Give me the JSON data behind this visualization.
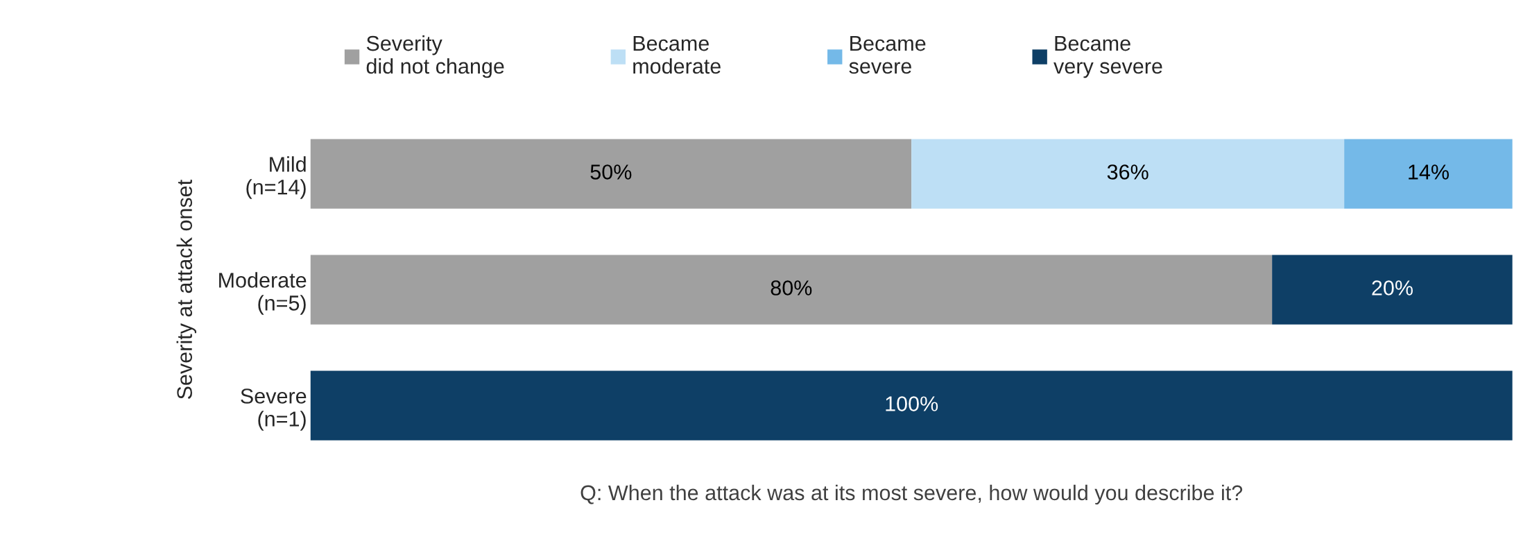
{
  "chart_data": {
    "type": "bar",
    "orientation": "horizontal",
    "stacked": true,
    "categories": [
      "Mild\n(n=14)",
      "Moderate\n(n=5)",
      "Severe\n(n=1)"
    ],
    "series": [
      {
        "name": "Severity\ndid not change",
        "color": "#a0a0a0",
        "values": [
          50,
          80,
          null
        ],
        "value_labels": [
          "50%",
          "80%",
          null
        ]
      },
      {
        "name": "Became\nmoderate",
        "color": "#bddff5",
        "values": [
          36,
          null,
          null
        ],
        "value_labels": [
          "36%",
          null,
          null
        ]
      },
      {
        "name": "Became\nsevere",
        "color": "#74b9e8",
        "values": [
          14,
          null,
          null
        ],
        "value_labels": [
          "14%",
          null,
          null
        ]
      },
      {
        "name": "Became\nvery severe",
        "color": "#0e3f66",
        "values": [
          null,
          20,
          100
        ],
        "value_labels": [
          null,
          "20%",
          "100%"
        ]
      }
    ],
    "xlim": [
      0,
      100
    ],
    "tick_labels": "y",
    "grid": false,
    "legend": "top",
    "ylabel": "Severity at attack onset",
    "xlabel": "Q: When the attack was at its most severe, how would you describe it?"
  }
}
